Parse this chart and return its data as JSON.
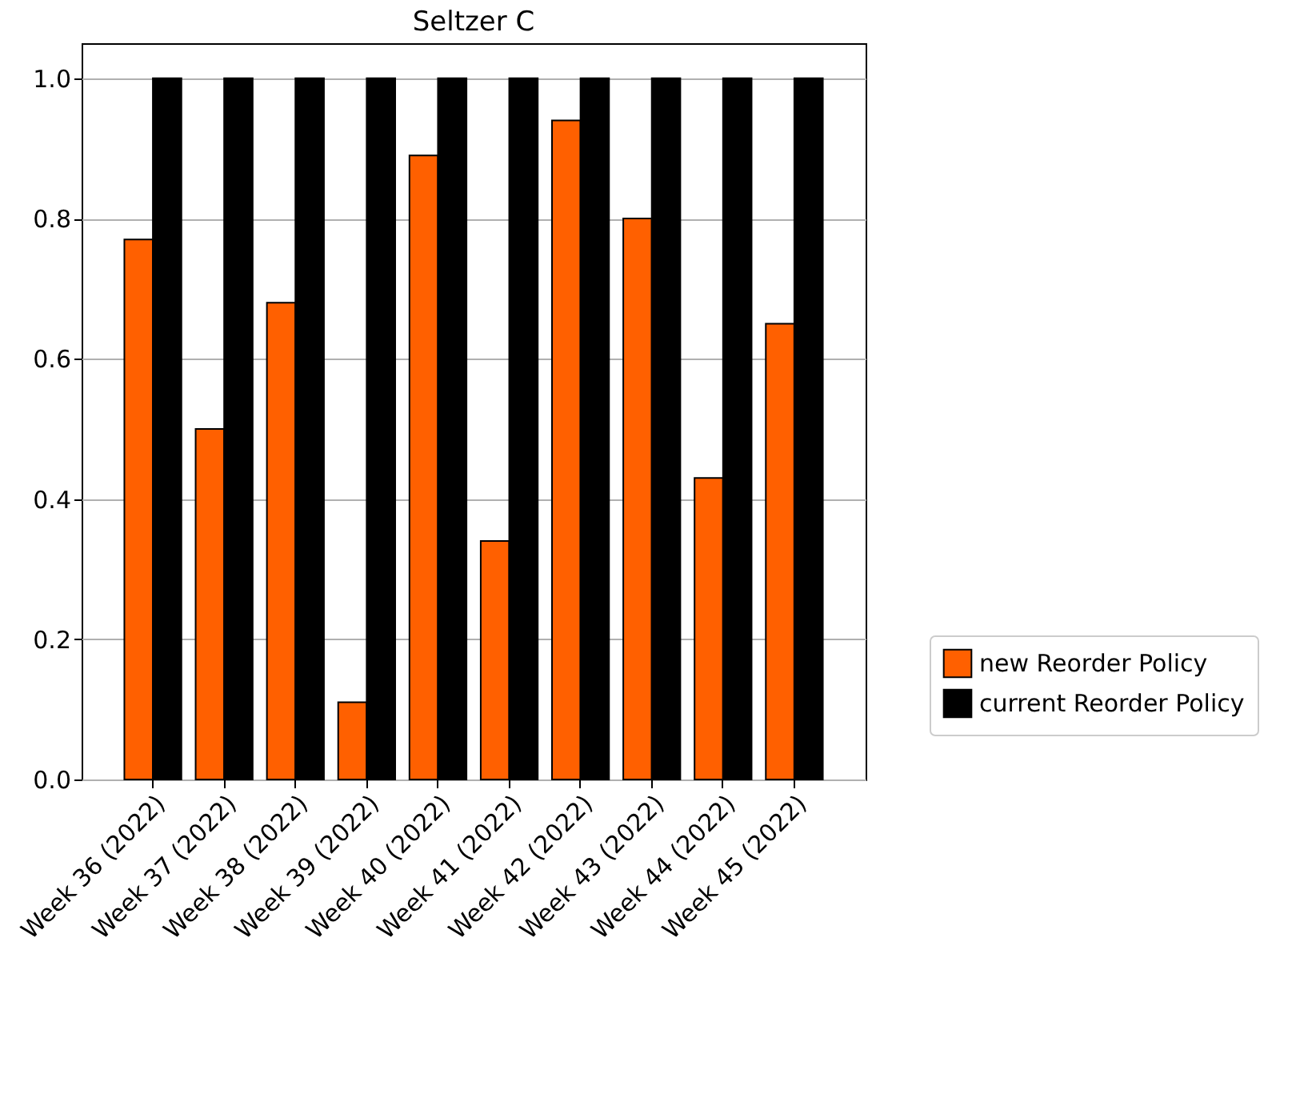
{
  "chart_data": {
    "type": "bar",
    "title": "Seltzer C",
    "categories": [
      "Week 36 (2022)",
      "Week 37 (2022)",
      "Week 38 (2022)",
      "Week 39 (2022)",
      "Week 40 (2022)",
      "Week 41 (2022)",
      "Week 42 (2022)",
      "Week 43 (2022)",
      "Week 44 (2022)",
      "Week 45 (2022)"
    ],
    "series": [
      {
        "name": "new Reorder Policy",
        "color": "#ff6000",
        "values": [
          0.77,
          0.5,
          0.68,
          0.11,
          0.89,
          0.34,
          0.94,
          0.8,
          0.43,
          0.65
        ]
      },
      {
        "name": "current Reorder Policy",
        "color": "#000000",
        "values": [
          1.0,
          1.0,
          1.0,
          1.0,
          1.0,
          1.0,
          1.0,
          1.0,
          1.0,
          1.0
        ]
      }
    ],
    "ylim": [
      0,
      1.05
    ],
    "yticks": [
      {
        "value": 0,
        "label": "0.0"
      },
      0.2,
      0.4,
      0.6,
      0.8,
      {
        "value": 1,
        "label": "1.0"
      }
    ],
    "grid": "y",
    "legend": "bottom right"
  }
}
